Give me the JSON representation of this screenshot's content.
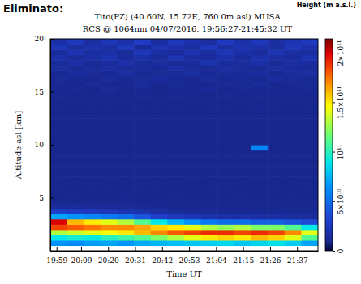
{
  "chart_data": {
    "type": "heatmap",
    "title": "Tito(PZ) (40.60N, 15.72E, 760.0m asl) MUSA",
    "subtitle": "RCS @ 1064nm 04/07/2016, 19:56:27-21:45:32 UT",
    "annotations": [
      "Eliminato:",
      "Height (m a.s.l.)"
    ],
    "xlabel": "Time UT",
    "ylabel": "Altitude asl [km]",
    "xlim": [
      1196.45,
      1305.53
    ],
    "xticks": [
      {
        "value": 1199,
        "label": "19:59"
      },
      {
        "value": 1209,
        "label": "20:09"
      },
      {
        "value": 1220,
        "label": "20:20"
      },
      {
        "value": 1231,
        "label": "20:31"
      },
      {
        "value": 1242,
        "label": "20:42"
      },
      {
        "value": 1253,
        "label": "20:53"
      },
      {
        "value": 1264,
        "label": "21:04"
      },
      {
        "value": 1275,
        "label": "21:15"
      },
      {
        "value": 1286,
        "label": "21:26"
      },
      {
        "value": 1297,
        "label": "21:37"
      }
    ],
    "ylim": [
      0,
      20
    ],
    "yticks": [
      5,
      10,
      15,
      20
    ],
    "x_bins": [
      1196.45,
      1203.27,
      1210.09,
      1216.9,
      1223.72,
      1230.54,
      1237.36,
      1244.18,
      1251.0,
      1257.81,
      1264.63,
      1271.45,
      1278.27,
      1285.09,
      1291.9,
      1298.72,
      1305.53
    ],
    "y_bins": [
      0,
      0.5,
      1,
      1.5,
      2,
      2.5,
      3,
      3.5,
      4,
      4.5,
      5,
      5.5,
      6,
      6.5,
      7,
      7.5,
      8,
      8.5,
      9,
      9.5,
      10,
      10.5,
      11,
      11.5,
      12,
      12.5,
      13,
      13.5,
      14,
      14.5,
      15,
      15.5,
      16,
      16.5,
      17,
      17.5,
      18,
      18.5,
      19,
      19.5,
      20
    ],
    "cells": [
      [
        null,
        null,
        null,
        null,
        null,
        null,
        null,
        null,
        null,
        null,
        null,
        null,
        null,
        null,
        null,
        null
      ],
      [
        65000000000.0,
        62000000000.0,
        68000000000.0,
        70000000000.0,
        66000000000.0,
        72000000000.0,
        75000000000.0,
        78000000000.0,
        80000000000.0,
        82000000000.0,
        85000000000.0,
        80000000000.0,
        84000000000.0,
        88000000000.0,
        82000000000.0,
        70000000000.0
      ],
      [
        90000000000.0,
        95000000000.0,
        92000000000.0,
        100000000000.0,
        105000000000.0,
        110000000000.0,
        120000000000.0,
        130000000000.0,
        140000000000.0,
        150000000000.0,
        155000000000.0,
        150000000000.0,
        160000000000.0,
        155000000000.0,
        140000000000.0,
        110000000000.0
      ],
      [
        130000000000.0,
        135000000000.0,
        140000000000.0,
        145000000000.0,
        150000000000.0,
        160000000000.0,
        170000000000.0,
        180000000000.0,
        185000000000.0,
        190000000000.0,
        190000000000.0,
        185000000000.0,
        190000000000.0,
        185000000000.0,
        170000000000.0,
        140000000000.0
      ],
      [
        185000000000.0,
        180000000000.0,
        175000000000.0,
        170000000000.0,
        170000000000.0,
        165000000000.0,
        155000000000.0,
        150000000000.0,
        140000000000.0,
        130000000000.0,
        125000000000.0,
        130000000000.0,
        120000000000.0,
        120000000000.0,
        110000000000.0,
        90000000000.0
      ],
      [
        200000000000.0,
        160000000000.0,
        150000000000.0,
        140000000000.0,
        130000000000.0,
        110000000000.0,
        90000000000.0,
        75000000000.0,
        65000000000.0,
        55000000000.0,
        50000000000.0,
        50000000000.0,
        45000000000.0,
        45000000000.0,
        40000000000.0,
        35000000000.0
      ],
      [
        70000000000.0,
        65000000000.0,
        60000000000.0,
        55000000000.0,
        50000000000.0,
        40000000000.0,
        30000000000.0,
        25000000000.0,
        22000000000.0,
        20000000000.0,
        18000000000.0,
        18000000000.0,
        17000000000.0,
        17000000000.0,
        16000000000.0,
        16000000000.0
      ],
      [
        30000000000.0,
        28000000000.0,
        26000000000.0,
        24000000000.0,
        22000000000.0,
        20000000000.0,
        16000000000.0,
        14000000000.0,
        13000000000.0,
        13000000000.0,
        12000000000.0,
        12000000000.0,
        12000000000.0,
        12000000000.0,
        12000000000.0,
        12000000000.0
      ],
      [
        14000000000.0,
        14000000000.0,
        13000000000.0,
        13000000000.0,
        13000000000.0,
        12000000000.0,
        12000000000.0,
        11000000000.0,
        11000000000.0,
        11000000000.0,
        11000000000.0,
        11000000000.0,
        11000000000.0,
        11000000000.0,
        11000000000.0,
        11000000000.0
      ],
      [
        11000000000.0,
        10000000000.0,
        10500000000.0,
        10000000000.0,
        11000000000.0,
        10000000000.0,
        10500000000.0,
        10000000000.0,
        10000000000.0,
        10500000000.0,
        10000000000.0,
        10000000000.0,
        10500000000.0,
        10000000000.0,
        10000000000.0,
        10500000000.0
      ],
      [
        10000000000.0,
        10500000000.0,
        10000000000.0,
        10000000000.0,
        10500000000.0,
        10000000000.0,
        10000000000.0,
        10500000000.0,
        10000000000.0,
        10000000000.0,
        10000000000.0,
        10500000000.0,
        10000000000.0,
        10000000000.0,
        10500000000.0,
        10000000000.0
      ],
      [
        10500000000.0,
        10000000000.0,
        10000000000.0,
        10500000000.0,
        10000000000.0,
        10000000000.0,
        10500000000.0,
        10000000000.0,
        10000000000.0,
        10500000000.0,
        10000000000.0,
        10000000000.0,
        10000000000.0,
        10500000000.0,
        10000000000.0,
        10000000000.0
      ],
      [
        10000000000.0,
        10000000000.0,
        10500000000.0,
        10000000000.0,
        10000000000.0,
        10500000000.0,
        10000000000.0,
        9500000000.0,
        10000000000.0,
        10000000000.0,
        10500000000.0,
        10000000000.0,
        10000000000.0,
        10000000000.0,
        10000000000.0,
        10500000000.0
      ],
      [
        10000000000.0,
        9500000000.0,
        10000000000.0,
        10000000000.0,
        10000000000.0,
        10000000000.0,
        9500000000.0,
        10000000000.0,
        10500000000.0,
        10000000000.0,
        10000000000.0,
        9500000000.0,
        10000000000.0,
        10000000000.0,
        9500000000.0,
        10000000000.0
      ],
      [
        9500000000.0,
        10000000000.0,
        10000000000.0,
        9500000000.0,
        10000000000.0,
        10000000000.0,
        10000000000.0,
        10000000000.0,
        9500000000.0,
        10000000000.0,
        10000000000.0,
        10000000000.0,
        9500000000.0,
        10000000000.0,
        10000000000.0,
        10000000000.0
      ],
      [
        10000000000.0,
        10000000000.0,
        9500000000.0,
        10000000000.0,
        9500000000.0,
        10000000000.0,
        10000000000.0,
        9500000000.0,
        10000000000.0,
        10000000000.0,
        9500000000.0,
        10000000000.0,
        10000000000.0,
        10000000000.0,
        10000000000.0,
        9500000000.0
      ],
      [
        10000000000.0,
        9500000000.0,
        10000000000.0,
        10000000000.0,
        10000000000.0,
        9500000000.0,
        10000000000.0,
        10000000000.0,
        10000000000.0,
        9500000000.0,
        10000000000.0,
        10000000000.0,
        10000000000.0,
        9500000000.0,
        10000000000.0,
        10000000000.0
      ],
      [
        9500000000.0,
        10000000000.0,
        10000000000.0,
        10000000000.0,
        9500000000.0,
        10000000000.0,
        9500000000.0,
        10000000000.0,
        10000000000.0,
        10000000000.0,
        10000000000.0,
        9500000000.0,
        10000000000.0,
        10000000000.0,
        10000000000.0,
        9500000000.0
      ],
      [
        10000000000.0,
        10000000000.0,
        9500000000.0,
        10000000000.0,
        10000000000.0,
        10000000000.0,
        10000000000.0,
        9500000000.0,
        10000000000.0,
        10000000000.0,
        9500000000.0,
        10000000000.0,
        10000000000.0,
        9500000000.0,
        10000000000.0,
        10000000000.0
      ],
      [
        10000000000.0,
        9500000000.0,
        10000000000.0,
        9500000000.0,
        10000000000.0,
        10000000000.0,
        9500000000.0,
        10000000000.0,
        10000000000.0,
        9500000000.0,
        10000000000.0,
        10000000000.0,
        60000000000.0,
        10000000000.0,
        9500000000.0,
        10000000000.0
      ],
      [
        9500000000.0,
        10000000000.0,
        10000000000.0,
        10000000000.0,
        10000000000.0,
        9500000000.0,
        10000000000.0,
        10000000000.0,
        9500000000.0,
        10000000000.0,
        10000000000.0,
        10000000000.0,
        10000000000.0,
        10000000000.0,
        10000000000.0,
        9500000000.0
      ],
      [
        10000000000.0,
        10000000000.0,
        9500000000.0,
        10000000000.0,
        9500000000.0,
        10000000000.0,
        10000000000.0,
        10000000000.0,
        10000000000.0,
        9500000000.0,
        10000000000.0,
        9500000000.0,
        10000000000.0,
        10000000000.0,
        9500000000.0,
        10000000000.0
      ],
      [
        10000000000.0,
        9500000000.0,
        10000000000.0,
        10000000000.0,
        10000000000.0,
        10000000000.0,
        9500000000.0,
        10000000000.0,
        10000000000.0,
        10000000000.0,
        9500000000.0,
        10000000000.0,
        10000000000.0,
        9500000000.0,
        10000000000.0,
        10000000000.0
      ],
      [
        9500000000.0,
        10000000000.0,
        10000000000.0,
        9500000000.0,
        10000000000.0,
        10000000000.0,
        10000000000.0,
        9500000000.0,
        10000000000.0,
        10000000000.0,
        10000000000.0,
        10000000000.0,
        9500000000.0,
        10000000000.0,
        10000000000.0,
        9500000000.0
      ],
      [
        10000000000.0,
        10000000000.0,
        10000000000.0,
        10000000000.0,
        9500000000.0,
        10000000000.0,
        10000000000.0,
        10000000000.0,
        9500000000.0,
        10000000000.0,
        10000000000.0,
        10000000000.0,
        10000000000.0,
        10000000000.0,
        9500000000.0,
        10000000000.0
      ],
      [
        10000000000.0,
        9500000000.0,
        10000000000.0,
        10000000000.0,
        10000000000.0,
        9500000000.0,
        10000000000.0,
        10000000000.0,
        10000000000.0,
        10000000000.0,
        9500000000.0,
        10000000000.0,
        10000000000.0,
        10000000000.0,
        10000000000.0,
        10000000000.0
      ],
      [
        10000000000.0,
        10000000000.0,
        10500000000.0,
        10000000000.0,
        10000000000.0,
        10000000000.0,
        10500000000.0,
        10000000000.0,
        10000000000.0,
        10500000000.0,
        10000000000.0,
        10000000000.0,
        10500000000.0,
        10000000000.0,
        10000000000.0,
        10500000000.0
      ],
      [
        10500000000.0,
        10000000000.0,
        10000000000.0,
        11000000000.0,
        10000000000.0,
        10500000000.0,
        10000000000.0,
        11000000000.0,
        10000000000.0,
        10000000000.0,
        11000000000.0,
        10000000000.0,
        10500000000.0,
        11000000000.0,
        10000000000.0,
        10000000000.0
      ],
      [
        10000000000.0,
        11000000000.0,
        10500000000.0,
        10000000000.0,
        11000000000.0,
        10000000000.0,
        11000000000.0,
        10000000000.0,
        10500000000.0,
        11000000000.0,
        10000000000.0,
        11000000000.0,
        10000000000.0,
        10000000000.0,
        11000000000.0,
        10500000000.0
      ],
      [
        11000000000.0,
        10000000000.0,
        11000000000.0,
        10500000000.0,
        10000000000.0,
        11500000000.0,
        10000000000.0,
        11000000000.0,
        11000000000.0,
        10000000000.0,
        11500000000.0,
        10000000000.0,
        11000000000.0,
        10500000000.0,
        11000000000.0,
        10000000000.0
      ],
      [
        11000000000.0,
        12000000000.0,
        10000000000.0,
        13000000000.0,
        11000000000.0,
        12000000000.0,
        10000000000.0,
        12000000000.0,
        11000000000.0,
        13000000000.0,
        10000000000.0,
        12000000000.0,
        11000000000.0,
        12000000000.0,
        11000000000.0,
        12000000000.0
      ],
      [
        12000000000.0,
        11000000000.0,
        13000000000.0,
        11000000000.0,
        12000000000.0,
        14000000000.0,
        11000000000.0,
        13000000000.0,
        12000000000.0,
        11000000000.0,
        13000000000.0,
        12000000000.0,
        14000000000.0,
        11000000000.0,
        12000000000.0,
        13000000000.0
      ],
      [
        13000000000.0,
        12000000000.0,
        11000000000.0,
        14000000000.0,
        12000000000.0,
        13000000000.0,
        15000000000.0,
        12000000000.0,
        11000000000.0,
        14000000000.0,
        12000000000.0,
        13000000000.0,
        12000000000.0,
        15000000000.0,
        13000000000.0,
        12000000000.0
      ],
      [
        12000000000.0,
        15000000000.0,
        13000000000.0,
        12000000000.0,
        16000000000.0,
        12000000000.0,
        13000000000.0,
        14000000000.0,
        16000000000.0,
        12000000000.0,
        14000000000.0,
        13000000000.0,
        15000000000.0,
        12000000000.0,
        14000000000.0,
        16000000000.0
      ],
      [
        16000000000.0,
        13000000000.0,
        14000000000.0,
        17000000000.0,
        13000000000.0,
        15000000000.0,
        12000000000.0,
        18000000000.0,
        14000000000.0,
        13000000000.0,
        17000000000.0,
        14000000000.0,
        13000000000.0,
        16000000000.0,
        15000000000.0,
        13000000000.0
      ],
      [
        14000000000.0,
        18000000000.0,
        13000000000.0,
        15000000000.0,
        19000000000.0,
        14000000000.0,
        16000000000.0,
        13000000000.0,
        15000000000.0,
        20000000000.0,
        14000000000.0,
        16000000000.0,
        18000000000.0,
        13000000000.0,
        17000000000.0,
        15000000000.0
      ],
      [
        19000000000.0,
        14000000000.0,
        17000000000.0,
        21000000000.0,
        15000000000.0,
        18000000000.0,
        14000000000.0,
        22000000000.0,
        16000000000.0,
        15000000000.0,
        19000000000.0,
        14000000000.0,
        20000000000.0,
        16000000000.0,
        15000000000.0,
        21000000000.0
      ],
      [
        15000000000.0,
        22000000000.0,
        16000000000.0,
        18000000000.0,
        14000000000.0,
        24000000000.0,
        17000000000.0,
        15000000000.0,
        21000000000.0,
        16000000000.0,
        23000000000.0,
        18000000000.0,
        15000000000.0,
        22000000000.0,
        17000000000.0,
        16000000000.0
      ],
      [
        24000000000.0,
        16000000000.0,
        20000000000.0,
        17000000000.0,
        26000000000.0,
        15000000000.0,
        22000000000.0,
        19000000000.0,
        16000000000.0,
        25000000000.0,
        17000000000.0,
        21000000000.0,
        18000000000.0,
        16000000000.0,
        24000000000.0,
        19000000000.0
      ],
      [
        18000000000.0,
        26000000000.0,
        17000000000.0,
        23000000000.0,
        19000000000.0,
        28000000000.0,
        16000000000.0,
        24000000000.0,
        20000000000.0,
        17000000000.0,
        27000000000.0,
        19000000000.0,
        25000000000.0,
        17000000000.0,
        22000000000.0,
        26000000000.0
      ]
    ],
    "colorbar": {
      "range": [
        0,
        214000000000.0
      ],
      "ticks": [
        0,
        {
          "value": 50000000000.0,
          "label": "5×10¹⁰"
        },
        {
          "value": 100000000000.0,
          "label": "10¹¹"
        },
        {
          "value": 150000000000.0,
          "label": "1.5×10¹¹"
        },
        {
          "value": 200000000000.0,
          "label": "2×10¹¹"
        }
      ]
    }
  }
}
